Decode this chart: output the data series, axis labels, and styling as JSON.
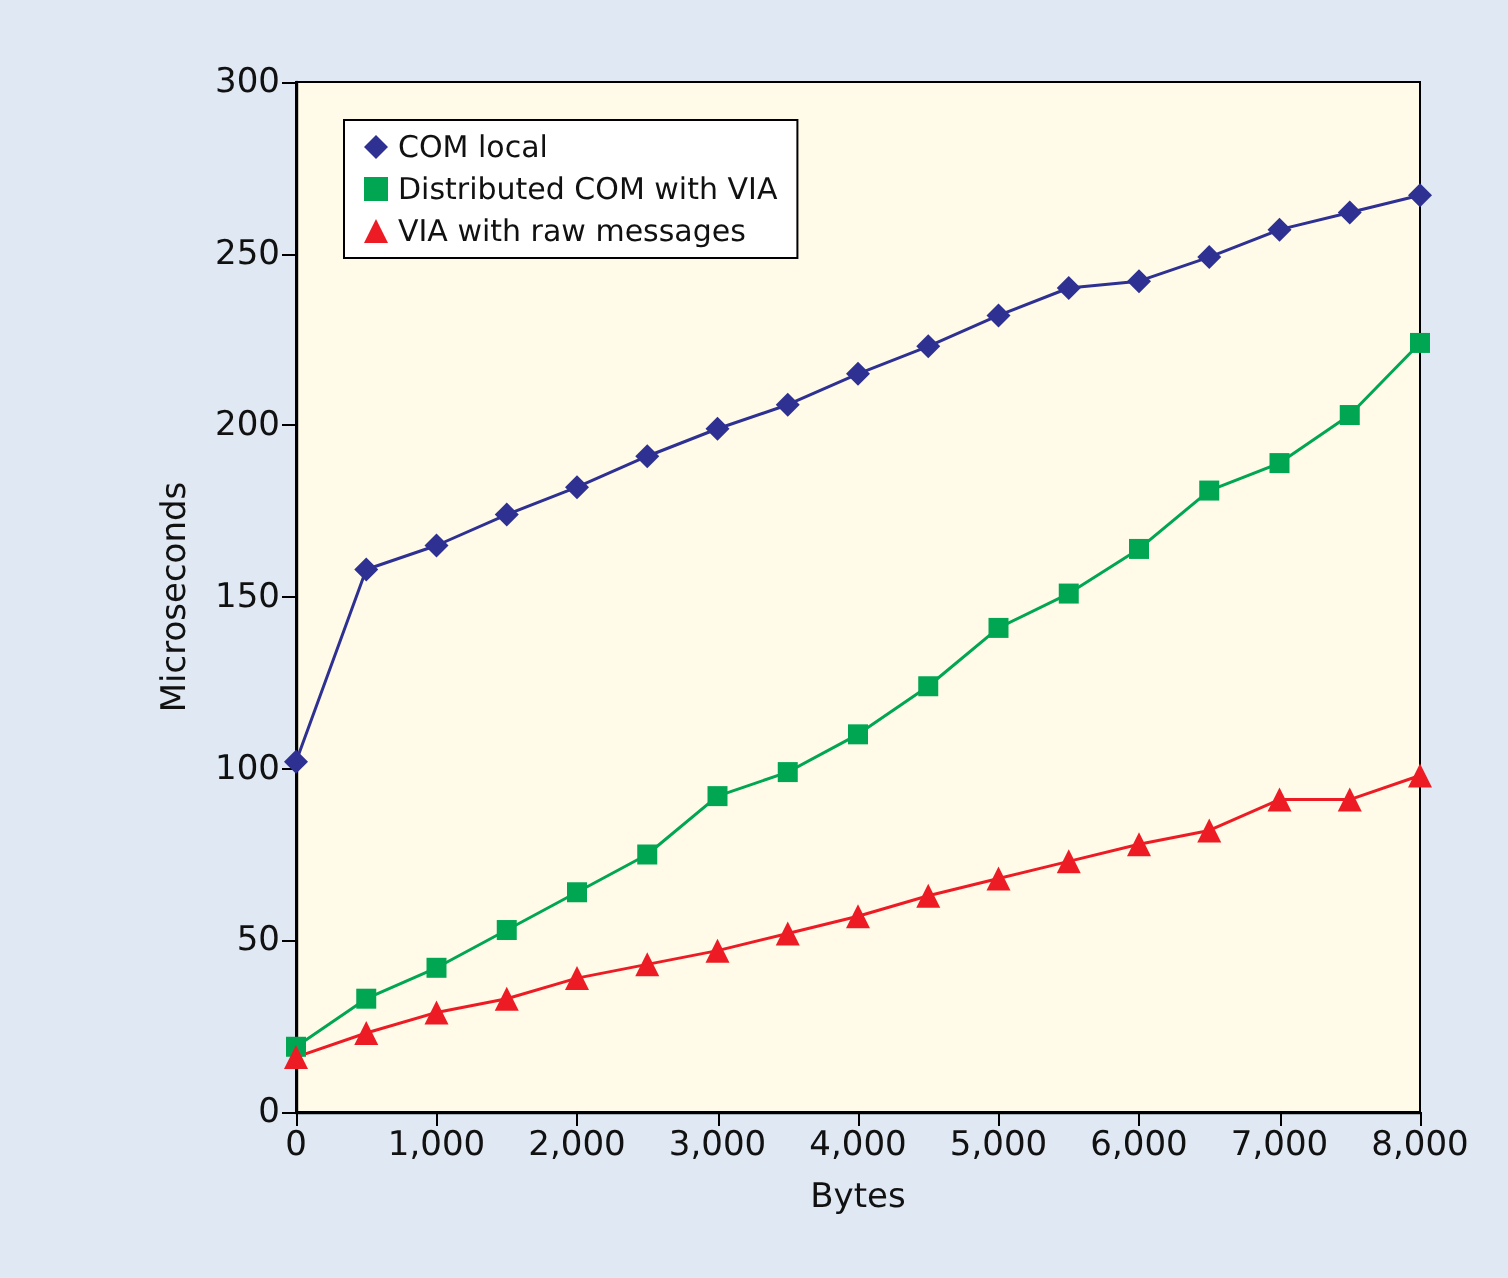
{
  "chart_data": {
    "type": "line",
    "xlabel": "Bytes",
    "ylabel": "Microseconds",
    "x": [
      0,
      500,
      1000,
      1500,
      2000,
      2500,
      3000,
      3500,
      4000,
      4500,
      5000,
      5500,
      6000,
      6500,
      7000,
      7500,
      8000
    ],
    "xlim": [
      0,
      8000
    ],
    "xticks": [
      0,
      {
        "value": 1000,
        "label": "1,000"
      },
      {
        "value": 2000,
        "label": "2,000"
      },
      {
        "value": 3000,
        "label": "3,000"
      },
      {
        "value": 4000,
        "label": "4,000"
      },
      {
        "value": 5000,
        "label": "5,000"
      },
      {
        "value": 6000,
        "label": "6,000"
      },
      {
        "value": 7000,
        "label": "7,000"
      },
      {
        "value": 8000,
        "label": "8,000"
      }
    ],
    "ylim": [
      0,
      300
    ],
    "yticks": [
      0,
      50,
      100,
      150,
      200,
      250,
      300
    ],
    "grid": false,
    "legend": "top left",
    "series": [
      {
        "name": "COM local",
        "color": "#2e3192",
        "marker": "diamond",
        "values": [
          102,
          158,
          165,
          174,
          182,
          191,
          199,
          206,
          215,
          223,
          232,
          240,
          242,
          249,
          257,
          262,
          267
        ]
      },
      {
        "name": "Distributed COM with VIA",
        "color": "#00a651",
        "marker": "square",
        "values": [
          19,
          33,
          42,
          53,
          64,
          75,
          92,
          99,
          110,
          124,
          141,
          151,
          164,
          181,
          189,
          203,
          224
        ]
      },
      {
        "name": "VIA with raw messages",
        "color": "#ed1c24",
        "marker": "triangle",
        "values": [
          16,
          23,
          29,
          33,
          39,
          43,
          47,
          52,
          57,
          63,
          68,
          73,
          78,
          82,
          91,
          91,
          98
        ]
      }
    ]
  }
}
